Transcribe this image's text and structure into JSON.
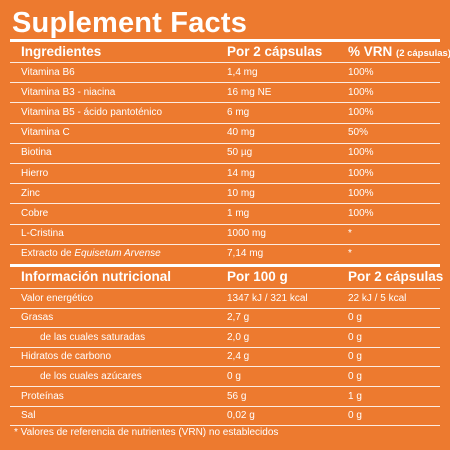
{
  "title": "Suplement Facts",
  "table1": {
    "headers": [
      "Ingredientes",
      "Por 2 cápsulas",
      "% VRN",
      "(2 cápsulas)"
    ],
    "rows": [
      {
        "name": "Vitamina B6",
        "amount": "1,4 mg",
        "vrn": "100%"
      },
      {
        "name": "Vitamina B3 - niacina",
        "amount": "16 mg NE",
        "vrn": "100%"
      },
      {
        "name": "Vitamina B5 - ácido pantoténico",
        "amount": "6 mg",
        "vrn": "100%"
      },
      {
        "name": "Vitamina C",
        "amount": "40 mg",
        "vrn": "50%"
      },
      {
        "name": "Biotina",
        "amount": "50 µg",
        "vrn": "100%"
      },
      {
        "name": "Hierro",
        "amount": "14 mg",
        "vrn": "100%"
      },
      {
        "name": "Zinc",
        "amount": "10 mg",
        "vrn": "100%"
      },
      {
        "name": "Cobre",
        "amount": "1 mg",
        "vrn": "100%"
      },
      {
        "name": "L-Cristina",
        "amount": "1000 mg",
        "vrn": "*"
      },
      {
        "name_prefix": "Extracto de ",
        "name_italic": "Equisetum Arvense",
        "amount": "7,14 mg",
        "vrn": "*"
      }
    ]
  },
  "table2": {
    "headers": [
      "Información nutricional",
      "Por 100 g",
      "Por 2 cápsulas"
    ],
    "rows": [
      {
        "name": "Valor energético",
        "per100": "1347 kJ / 321 kcal",
        "per2": "22 kJ / 5 kcal"
      },
      {
        "name": "Grasas",
        "per100": "2,7 g",
        "per2": "0 g"
      },
      {
        "name": "de las cuales saturadas",
        "per100": "2,0 g",
        "per2": "0 g",
        "indent": true
      },
      {
        "name": "Hidratos de carbono",
        "per100": "2,4 g",
        "per2": "0 g"
      },
      {
        "name": "de los cuales azúcares",
        "per100": "0 g",
        "per2": "0 g",
        "indent": true
      },
      {
        "name": "Proteínas",
        "per100": "56 g",
        "per2": "1 g"
      },
      {
        "name": "Sal",
        "per100": "0,02 g",
        "per2": "0 g"
      }
    ]
  },
  "footnote": "* Valores de referencia de nutrientes (VRN) no establecidos",
  "colors": {
    "background": "#ed7a2f",
    "text": "#ffffff"
  }
}
